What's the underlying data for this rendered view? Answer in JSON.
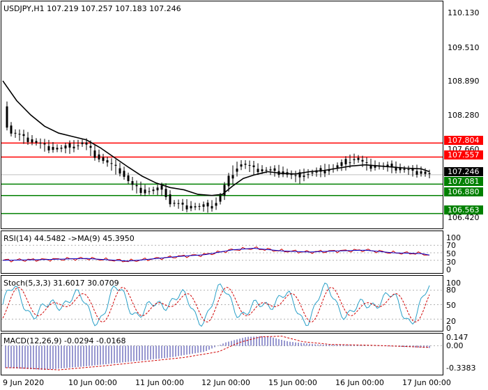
{
  "main": {
    "symbol_line": "USDJPY,H1  107.219 107.257 107.183 107.246",
    "y_ticks": [
      "110.130",
      "109.510",
      "108.890",
      "108.280",
      "107.660",
      "106.420"
    ],
    "y_range": [
      106.3,
      110.3
    ],
    "current_price": {
      "value": 107.246,
      "label": "107.246",
      "color": "#000000"
    },
    "levels": [
      {
        "value": 107.804,
        "label": "107.804",
        "color": "#ff0000"
      },
      {
        "value": 107.557,
        "label": "107.557",
        "color": "#ff0000"
      },
      {
        "value": 107.081,
        "label": "107.081",
        "color": "#008000"
      },
      {
        "value": 106.88,
        "label": "106.880",
        "color": "#008000"
      },
      {
        "value": 106.563,
        "label": "106.563",
        "color": "#008000"
      }
    ]
  },
  "rsi": {
    "title": "RSI(14) 44.5482 ->MA(9) 45.3950",
    "ticks": [
      "100",
      "70",
      "50",
      "30",
      "0"
    ],
    "levels": [
      70,
      50,
      30
    ]
  },
  "stoch": {
    "title": "Stoch(5,3,3) 31.6017 30.0709",
    "ticks": [
      "100",
      "80",
      "50",
      "20",
      "0"
    ],
    "levels": [
      80,
      50,
      20
    ]
  },
  "macd": {
    "title": "MACD(12,26,9) -0.0294 -0.0168",
    "ticks": [
      "0.147",
      "0.00",
      "-0.3383"
    ]
  },
  "x_labels": [
    "9 Jun 2020",
    "10 Jun 00:00",
    "11 Jun 00:00",
    "12 Jun 00:00",
    "15 Jun 00:00",
    "16 Jun 00:00",
    "17 Jun 00:00"
  ],
  "chart_data": {
    "type": "line",
    "series": [
      {
        "name": "USDJPY,H1",
        "points": [
          [
            0,
            108.45
          ],
          [
            8,
            108.0
          ],
          [
            20,
            107.95
          ],
          [
            40,
            107.85
          ],
          [
            60,
            107.75
          ],
          [
            80,
            107.7
          ],
          [
            100,
            107.75
          ],
          [
            115,
            107.82
          ],
          [
            130,
            107.62
          ],
          [
            150,
            107.45
          ],
          [
            170,
            107.3
          ],
          [
            185,
            107.05
          ],
          [
            205,
            106.95
          ],
          [
            230,
            107.0
          ],
          [
            240,
            106.75
          ],
          [
            260,
            106.7
          ],
          [
            280,
            106.68
          ],
          [
            300,
            106.7
          ],
          [
            310,
            106.82
          ],
          [
            320,
            107.1
          ],
          [
            330,
            107.3
          ],
          [
            340,
            107.45
          ],
          [
            360,
            107.35
          ],
          [
            380,
            107.32
          ],
          [
            400,
            107.3
          ],
          [
            420,
            107.2
          ],
          [
            430,
            107.25
          ],
          [
            450,
            107.3
          ],
          [
            470,
            107.35
          ],
          [
            490,
            107.45
          ],
          [
            505,
            107.55
          ],
          [
            520,
            107.42
          ],
          [
            540,
            107.4
          ],
          [
            560,
            107.38
          ],
          [
            580,
            107.32
          ],
          [
            600,
            107.3
          ],
          [
            612,
            107.246
          ]
        ]
      },
      {
        "name": "MA",
        "points": [
          [
            0,
            108.9
          ],
          [
            20,
            108.55
          ],
          [
            40,
            108.3
          ],
          [
            60,
            108.1
          ],
          [
            80,
            107.98
          ],
          [
            100,
            107.92
          ],
          [
            120,
            107.86
          ],
          [
            140,
            107.72
          ],
          [
            160,
            107.55
          ],
          [
            180,
            107.38
          ],
          [
            200,
            107.22
          ],
          [
            220,
            107.1
          ],
          [
            240,
            107.02
          ],
          [
            260,
            106.98
          ],
          [
            280,
            106.9
          ],
          [
            300,
            106.88
          ],
          [
            315,
            106.9
          ],
          [
            330,
            107.05
          ],
          [
            345,
            107.18
          ],
          [
            360,
            107.24
          ],
          [
            380,
            107.3
          ],
          [
            400,
            107.27
          ],
          [
            420,
            107.26
          ],
          [
            440,
            107.3
          ],
          [
            460,
            107.32
          ],
          [
            480,
            107.36
          ],
          [
            500,
            107.4
          ],
          [
            520,
            107.42
          ],
          [
            540,
            107.4
          ],
          [
            560,
            107.38
          ],
          [
            580,
            107.36
          ],
          [
            600,
            107.35
          ],
          [
            612,
            107.3
          ]
        ]
      }
    ]
  }
}
